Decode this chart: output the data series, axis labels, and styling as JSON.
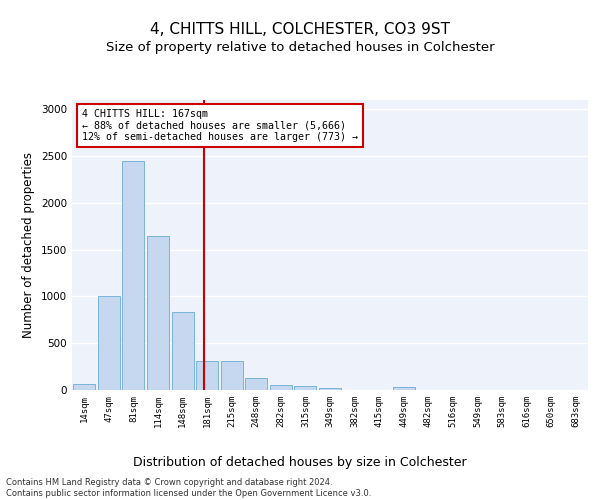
{
  "title": "4, CHITTS HILL, COLCHESTER, CO3 9ST",
  "subtitle": "Size of property relative to detached houses in Colchester",
  "xlabel": "Distribution of detached houses by size in Colchester",
  "ylabel": "Number of detached properties",
  "categories": [
    "14sqm",
    "47sqm",
    "81sqm",
    "114sqm",
    "148sqm",
    "181sqm",
    "215sqm",
    "248sqm",
    "282sqm",
    "315sqm",
    "349sqm",
    "382sqm",
    "415sqm",
    "449sqm",
    "482sqm",
    "516sqm",
    "549sqm",
    "583sqm",
    "616sqm",
    "650sqm",
    "683sqm"
  ],
  "values": [
    60,
    1000,
    2450,
    1650,
    830,
    305,
    305,
    130,
    55,
    45,
    25,
    0,
    0,
    30,
    0,
    0,
    0,
    0,
    0,
    0,
    0
  ],
  "bar_color": "#c5d8f0",
  "bar_edge_color": "#6aaad4",
  "vline_x": 4.88,
  "vline_color": "#cc0000",
  "annotation_text": "4 CHITTS HILL: 167sqm\n← 88% of detached houses are smaller (5,666)\n12% of semi-detached houses are larger (773) →",
  "annotation_box_color": "#ffffff",
  "annotation_box_edge_color": "#cc0000",
  "ylim": [
    0,
    3100
  ],
  "yticks": [
    0,
    500,
    1000,
    1500,
    2000,
    2500,
    3000
  ],
  "plot_bg_color": "#eef2fa",
  "fig_bg_color": "#ffffff",
  "grid_color": "#ffffff",
  "footer_line1": "Contains HM Land Registry data © Crown copyright and database right 2024.",
  "footer_line2": "Contains public sector information licensed under the Open Government Licence v3.0.",
  "title_fontsize": 11,
  "subtitle_fontsize": 9.5,
  "xlabel_fontsize": 9,
  "ylabel_fontsize": 8.5
}
